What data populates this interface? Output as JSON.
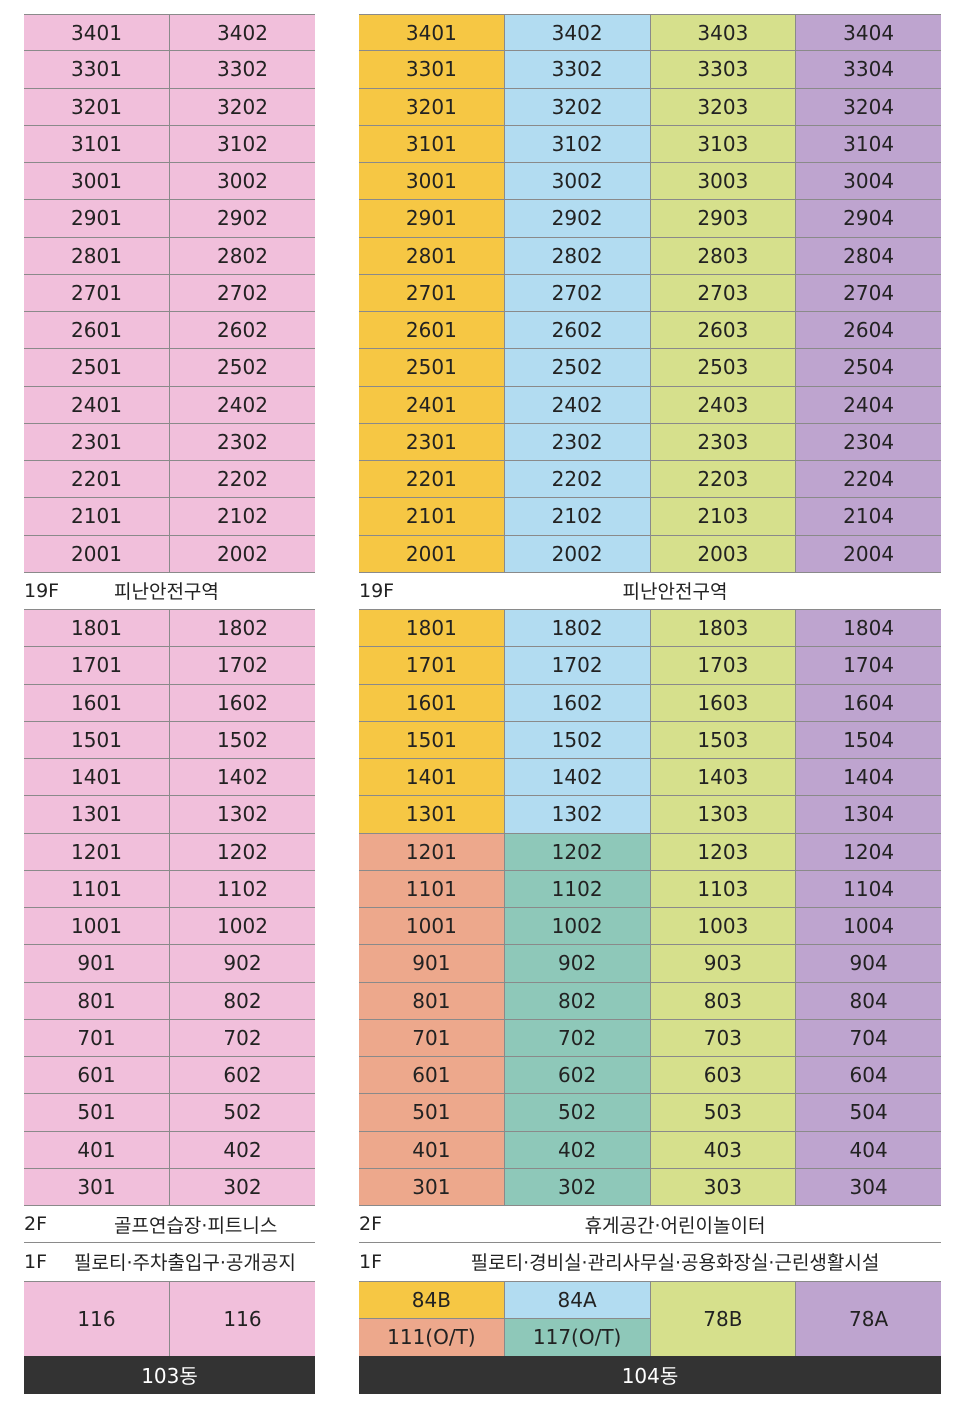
{
  "b103": {
    "name": "103동",
    "upper": [
      [
        "3401",
        "3402"
      ],
      [
        "3301",
        "3302"
      ],
      [
        "3201",
        "3202"
      ],
      [
        "3101",
        "3102"
      ],
      [
        "3001",
        "3002"
      ],
      [
        "2901",
        "2902"
      ],
      [
        "2801",
        "2802"
      ],
      [
        "2701",
        "2702"
      ],
      [
        "2601",
        "2602"
      ],
      [
        "2501",
        "2502"
      ],
      [
        "2401",
        "2402"
      ],
      [
        "2301",
        "2302"
      ],
      [
        "2201",
        "2202"
      ],
      [
        "2101",
        "2102"
      ],
      [
        "2001",
        "2002"
      ]
    ],
    "refuge": {
      "level": "19F",
      "desc": "피난안전구역"
    },
    "lower": [
      [
        "1801",
        "1802"
      ],
      [
        "1701",
        "1702"
      ],
      [
        "1601",
        "1602"
      ],
      [
        "1501",
        "1502"
      ],
      [
        "1401",
        "1402"
      ],
      [
        "1301",
        "1302"
      ],
      [
        "1201",
        "1202"
      ],
      [
        "1101",
        "1102"
      ],
      [
        "1001",
        "1002"
      ],
      [
        "901",
        "902"
      ],
      [
        "801",
        "802"
      ],
      [
        "701",
        "702"
      ],
      [
        "601",
        "602"
      ],
      [
        "501",
        "502"
      ],
      [
        "401",
        "402"
      ],
      [
        "301",
        "302"
      ]
    ],
    "f2": {
      "level": "2F",
      "desc": "골프연습장·피트니스"
    },
    "f1": {
      "level": "1F",
      "desc": "필로티·주차출입구·공개공지"
    },
    "types": [
      "116",
      "116"
    ],
    "colors": {
      "unit": "#f1bfdb"
    }
  },
  "b104": {
    "name": "104동",
    "upper": [
      [
        "3401",
        "3402",
        "3403",
        "3404"
      ],
      [
        "3301",
        "3302",
        "3303",
        "3304"
      ],
      [
        "3201",
        "3202",
        "3203",
        "3204"
      ],
      [
        "3101",
        "3102",
        "3103",
        "3104"
      ],
      [
        "3001",
        "3002",
        "3003",
        "3004"
      ],
      [
        "2901",
        "2902",
        "2903",
        "2904"
      ],
      [
        "2801",
        "2802",
        "2803",
        "2804"
      ],
      [
        "2701",
        "2702",
        "2703",
        "2704"
      ],
      [
        "2601",
        "2602",
        "2603",
        "2604"
      ],
      [
        "2501",
        "2502",
        "2503",
        "2504"
      ],
      [
        "2401",
        "2402",
        "2403",
        "2404"
      ],
      [
        "2301",
        "2302",
        "2303",
        "2304"
      ],
      [
        "2201",
        "2202",
        "2203",
        "2204"
      ],
      [
        "2101",
        "2102",
        "2103",
        "2104"
      ],
      [
        "2001",
        "2002",
        "2003",
        "2004"
      ]
    ],
    "refuge": {
      "level": "19F",
      "desc": "피난안전구역"
    },
    "lower": [
      [
        "1801",
        "1802",
        "1803",
        "1804"
      ],
      [
        "1701",
        "1702",
        "1703",
        "1704"
      ],
      [
        "1601",
        "1602",
        "1603",
        "1604"
      ],
      [
        "1501",
        "1502",
        "1503",
        "1504"
      ],
      [
        "1401",
        "1402",
        "1403",
        "1404"
      ],
      [
        "1301",
        "1302",
        "1303",
        "1304"
      ],
      [
        "1201",
        "1202",
        "1203",
        "1204"
      ],
      [
        "1101",
        "1102",
        "1103",
        "1104"
      ],
      [
        "1001",
        "1002",
        "1003",
        "1004"
      ],
      [
        "901",
        "902",
        "903",
        "904"
      ],
      [
        "801",
        "802",
        "803",
        "804"
      ],
      [
        "701",
        "702",
        "703",
        "704"
      ],
      [
        "601",
        "602",
        "603",
        "604"
      ],
      [
        "501",
        "502",
        "503",
        "504"
      ],
      [
        "401",
        "402",
        "403",
        "404"
      ],
      [
        "301",
        "302",
        "303",
        "304"
      ]
    ],
    "f2": {
      "level": "2F",
      "desc": "휴게공간·어린이놀이터"
    },
    "f1": {
      "level": "1F",
      "desc": "필로티·경비실·관리사무실·공용화장실·근린생활시설"
    },
    "types": {
      "col1_top": "84B",
      "col1_bottom": "111(O/T)",
      "col2_top": "84A",
      "col2_bottom": "117(O/T)",
      "col3": "78B",
      "col4": "78A"
    },
    "colors": {
      "84B": "#f6c744",
      "84A": "#b2dcf1",
      "78B": "#d6e08c",
      "78A": "#bea4cf",
      "111(O/T)": "#eda88c",
      "117(O/T)": "#8ec8b9"
    }
  }
}
